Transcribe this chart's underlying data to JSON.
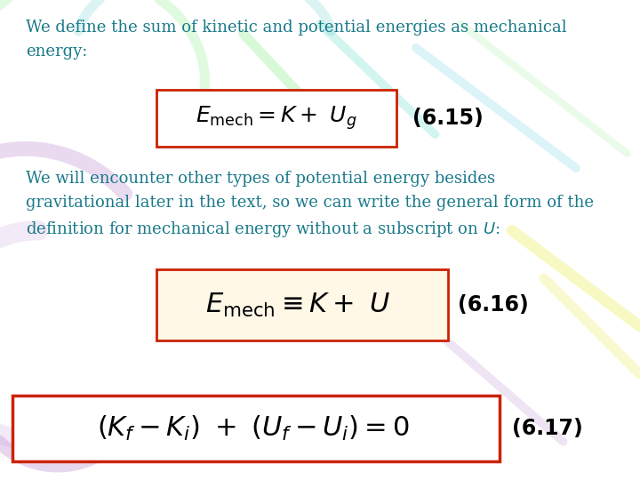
{
  "bg_color": "#ffffff",
  "text_color": "#1a7a8a",
  "eq_color": "#000000",
  "box_edge_color": "#cc2200",
  "para1": "We define the sum of kinetic and potential energies as mechanical\nenergy:",
  "para2": "We will encounter other types of potential energy besides\ngravitational later in the text, so we can write the general form of the\ndefinition for mechanical energy without a subscript on $U$:",
  "eq1": "$E_{\\mathrm{mech}} = K +\\ U_g$",
  "eq1_label": "(6.15)",
  "eq2": "$E_{\\mathrm{mech}} \\equiv K +\\ U$",
  "eq2_label": "(6.16)",
  "eq3": "$(K_f - K_i)\\ +\\ (U_f - U_i) = 0$",
  "eq3_label": "(6.17)",
  "eq2_bg": "#fff8e7",
  "font_size_text": 13,
  "font_size_eq1": 18,
  "font_size_eq2": 22,
  "font_size_eq3": 22,
  "font_size_label": 16
}
